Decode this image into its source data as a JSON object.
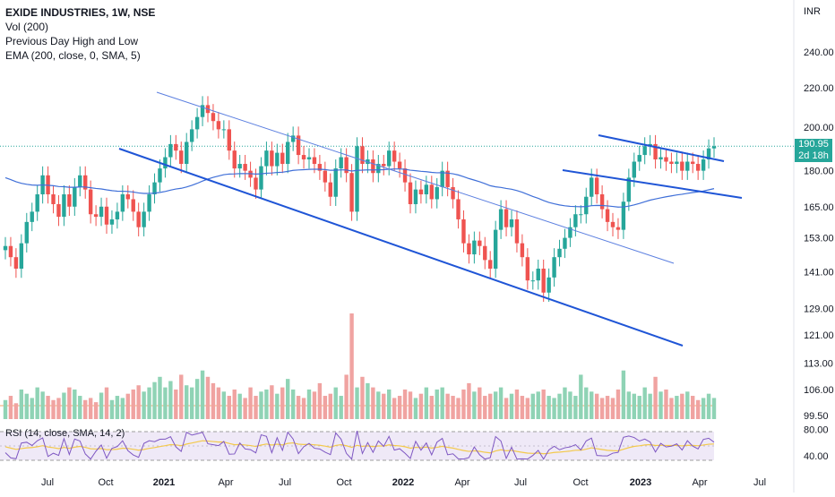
{
  "legend": {
    "title": "EXIDE INDUSTRIES, 1W, NSE",
    "lines": [
      "Vol (200)",
      "Previous Day High and Low",
      "EMA (200, close, 0, SMA, 5)"
    ]
  },
  "rsi_label": "RSI (14, close, SMA, 14, 2)",
  "currency": "INR",
  "last_price": "190.95",
  "countdown": "2d 18h",
  "colors": {
    "up": "#26a69a",
    "down": "#ef5350",
    "ema": "#3f6fd8",
    "trend": "#1f55d6",
    "rsi": "#7e57c2",
    "rsi_ma": "#f3c94b"
  },
  "chart_data": {
    "type": "candlestick",
    "title": "EXIDE INDUSTRIES, 1W, NSE",
    "price_axis": {
      "scale": "log",
      "ticks": [
        99.5,
        106.0,
        113.0,
        121.0,
        129.0,
        141.0,
        153.0,
        165.0,
        180.0,
        200.0,
        220.0,
        240.0
      ],
      "tick_labels": [
        "99.50",
        "106.00",
        "113.00",
        "121.00",
        "129.00",
        "141.00",
        "153.00",
        "165.00",
        "180.00",
        "200.00",
        "220.00",
        "240.00"
      ],
      "range": [
        97,
        262
      ]
    },
    "time_axis": {
      "labels": [
        "Jul",
        "Oct",
        "2021",
        "Apr",
        "Jul",
        "Oct",
        "2022",
        "Apr",
        "Jul",
        "Oct",
        "2023",
        "Apr",
        "Jul"
      ],
      "bold": [
        "2021",
        "2022",
        "2023"
      ]
    },
    "candles_close": [
      150,
      146,
      142,
      151,
      159,
      163,
      170,
      178,
      170,
      166,
      161,
      170,
      165,
      173,
      178,
      172,
      162,
      161,
      165,
      158,
      160,
      163,
      170,
      168,
      163,
      157,
      163,
      170,
      175,
      181,
      186,
      192,
      189,
      183,
      193,
      199,
      205,
      211,
      207,
      203,
      199,
      199,
      189,
      181,
      183,
      180,
      177,
      172,
      182,
      189,
      182,
      188,
      183,
      193,
      196,
      187,
      185,
      186,
      183,
      180,
      175,
      169,
      181,
      186,
      179,
      163,
      191,
      183,
      185,
      179,
      183,
      182,
      189,
      184,
      181,
      175,
      166,
      172,
      170,
      174,
      168,
      173,
      180,
      173,
      168,
      160,
      151,
      147,
      152,
      150,
      145,
      142,
      156,
      164,
      157,
      160,
      151,
      146,
      138,
      138,
      142,
      134,
      139,
      146,
      149,
      153,
      157,
      162,
      162,
      169,
      177,
      170,
      164,
      159,
      157,
      156,
      167,
      177,
      184,
      187,
      191,
      192,
      185,
      186,
      184,
      183,
      184,
      180,
      184,
      183,
      180,
      185,
      190,
      191
    ],
    "volume_relative": [
      0.18,
      0.22,
      0.15,
      0.28,
      0.24,
      0.2,
      0.3,
      0.26,
      0.22,
      0.18,
      0.2,
      0.25,
      0.3,
      0.28,
      0.22,
      0.18,
      0.2,
      0.16,
      0.25,
      0.3,
      0.18,
      0.22,
      0.2,
      0.24,
      0.28,
      0.32,
      0.26,
      0.3,
      0.35,
      0.4,
      0.3,
      0.36,
      0.28,
      0.42,
      0.32,
      0.3,
      0.38,
      0.46,
      0.4,
      0.34,
      0.3,
      0.26,
      0.22,
      0.28,
      0.24,
      0.2,
      0.3,
      0.22,
      0.26,
      0.28,
      0.32,
      0.24,
      0.3,
      0.38,
      0.28,
      0.22,
      0.2,
      0.28,
      0.26,
      0.34,
      0.22,
      0.24,
      0.3,
      0.22,
      0.42,
      1.0,
      0.3,
      0.4,
      0.34,
      0.3,
      0.26,
      0.24,
      0.28,
      0.2,
      0.22,
      0.28,
      0.26,
      0.2,
      0.24,
      0.3,
      0.22,
      0.28,
      0.3,
      0.24,
      0.22,
      0.2,
      0.28,
      0.34,
      0.26,
      0.3,
      0.22,
      0.24,
      0.26,
      0.3,
      0.2,
      0.24,
      0.28,
      0.22,
      0.2,
      0.24,
      0.26,
      0.28,
      0.22,
      0.2,
      0.24,
      0.3,
      0.26,
      0.22,
      0.42,
      0.3,
      0.26,
      0.24,
      0.2,
      0.22,
      0.2,
      0.28,
      0.46,
      0.26,
      0.24,
      0.22,
      0.3,
      0.24,
      0.4,
      0.26,
      0.28,
      0.2,
      0.22,
      0.24,
      0.26,
      0.22,
      0.18,
      0.2,
      0.24,
      0.2
    ],
    "rsi_ticks": [
      "80.00",
      "40.00"
    ],
    "rsi_range": [
      25,
      85
    ],
    "rsi_bands": [
      70,
      30
    ]
  }
}
